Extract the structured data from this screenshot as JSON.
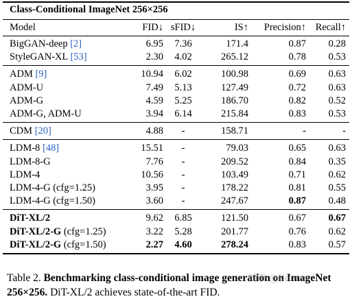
{
  "table": {
    "title": "Class-Conditional ImageNet 256×256",
    "headers": [
      "Model",
      "FID↓",
      "sFID↓",
      "IS↑",
      "Precision↑",
      "Recall↑"
    ],
    "groups": [
      [
        {
          "model": "BigGAN-deep",
          "ref": "[2]",
          "values": [
            "6.95",
            "7.36",
            "171.4",
            "0.87",
            "0.28"
          ]
        },
        {
          "model": "StyleGAN-XL",
          "ref": "[53]",
          "values": [
            "2.30",
            "4.02",
            "265.12",
            "0.78",
            "0.53"
          ]
        }
      ],
      [
        {
          "model": "ADM",
          "ref": "[9]",
          "values": [
            "10.94",
            "6.02",
            "100.98",
            "0.69",
            "0.63"
          ]
        },
        {
          "model": "ADM-U",
          "ref": "",
          "values": [
            "7.49",
            "5.13",
            "127.49",
            "0.72",
            "0.63"
          ]
        },
        {
          "model": "ADM-G",
          "ref": "",
          "values": [
            "4.59",
            "5.25",
            "186.70",
            "0.82",
            "0.52"
          ]
        },
        {
          "model": "ADM-G, ADM-U",
          "ref": "",
          "values": [
            "3.94",
            "6.14",
            "215.84",
            "0.83",
            "0.53"
          ]
        }
      ],
      [
        {
          "model": "CDM",
          "ref": "[20]",
          "values": [
            "4.88",
            "-",
            "158.71",
            "-",
            "-"
          ]
        }
      ],
      [
        {
          "model": "LDM-8",
          "ref": "[48]",
          "values": [
            "15.51",
            "-",
            "79.03",
            "0.65",
            "0.63"
          ]
        },
        {
          "model": "LDM-8-G",
          "ref": "",
          "values": [
            "7.76",
            "-",
            "209.52",
            "0.84",
            "0.35"
          ]
        },
        {
          "model": "LDM-4",
          "ref": "",
          "values": [
            "10.56",
            "-",
            "103.49",
            "0.71",
            "0.62"
          ]
        },
        {
          "model": "LDM-4-G (cfg=1.25)",
          "ref": "",
          "values": [
            "3.95",
            "-",
            "178.22",
            "0.81",
            "0.55"
          ]
        },
        {
          "model": "LDM-4-G (cfg=1.50)",
          "ref": "",
          "values": [
            "3.60",
            "-",
            "247.67",
            "0.87",
            "0.48"
          ],
          "bold": [
            false,
            false,
            false,
            true,
            false
          ]
        }
      ],
      [
        {
          "model": "DiT-XL/2",
          "suffix": "",
          "model_bold": true,
          "values": [
            "9.62",
            "6.85",
            "121.50",
            "0.67",
            "0.67"
          ],
          "bold": [
            false,
            false,
            false,
            false,
            true
          ]
        },
        {
          "model": "DiT-XL/2-G",
          "suffix": " (cfg=1.25)",
          "model_bold": true,
          "values": [
            "3.22",
            "5.28",
            "201.77",
            "0.76",
            "0.62"
          ]
        },
        {
          "model": "DiT-XL/2-G",
          "suffix": " (cfg=1.50)",
          "model_bold": true,
          "values": [
            "2.27",
            "4.60",
            "278.24",
            "0.83",
            "0.57"
          ],
          "bold": [
            true,
            true,
            true,
            false,
            false
          ]
        }
      ]
    ]
  },
  "caption": {
    "label": "Table 2.",
    "bold_text": "Benchmarking class-conditional image generation on ImageNet 256×256.",
    "text": "DiT-XL/2 achieves state-of-the-art FID."
  },
  "watermark": "知乎 @Nonne"
}
